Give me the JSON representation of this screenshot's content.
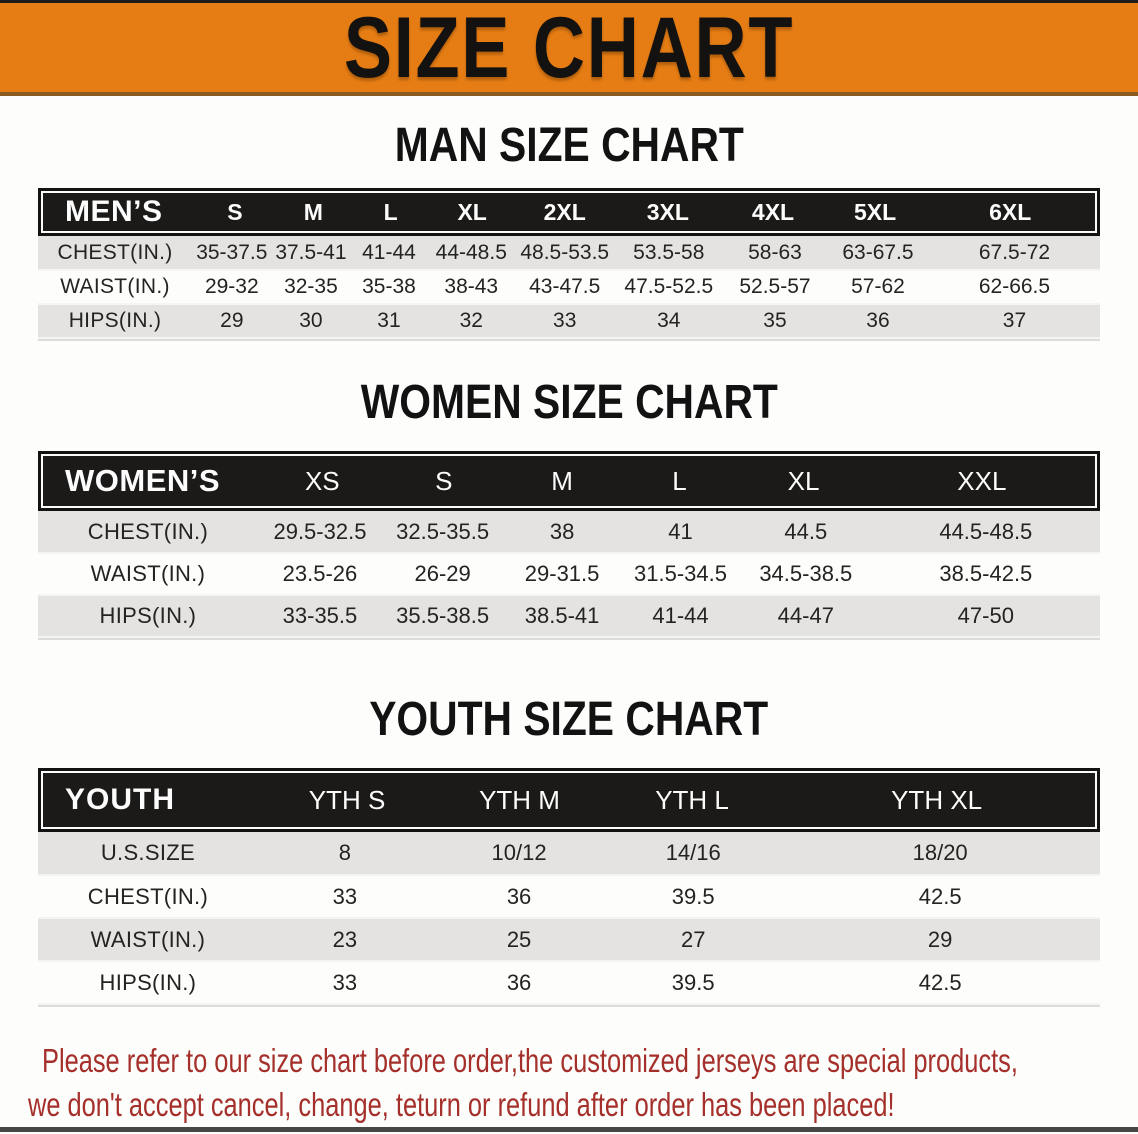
{
  "banner": {
    "title": "SIZE CHART"
  },
  "colors": {
    "banner_orange": "#E67D14",
    "header_band_black": "#1B1A19",
    "row_gray": "#E4E3E1",
    "disclaimer_red": "#A5302B"
  },
  "sections": [
    {
      "heading": "MAN SIZE CHART",
      "table": {
        "key": "men",
        "header_label": "MEN’S",
        "sizes": [
          "S",
          "M",
          "L",
          "XL",
          "2XL",
          "3XL",
          "4XL",
          "5XL",
          "6XL"
        ],
        "rows": [
          {
            "label": "CHEST(IN.)",
            "values": [
              "35-37.5",
              "37.5-41",
              "41-44",
              "44-48.5",
              "48.5-53.5",
              "53.5-58",
              "58-63",
              "63-67.5",
              "67.5-72"
            ]
          },
          {
            "label": "WAIST(IN.)",
            "values": [
              "29-32",
              "32-35",
              "35-38",
              "38-43",
              "43-47.5",
              "47.5-52.5",
              "52.5-57",
              "57-62",
              "62-66.5"
            ]
          },
          {
            "label": "HIPS(IN.)",
            "values": [
              "29",
              "30",
              "31",
              "32",
              "33",
              "34",
              "35",
              "36",
              "37"
            ]
          }
        ]
      }
    },
    {
      "heading": "WOMEN SIZE CHART",
      "table": {
        "key": "women",
        "header_label": "WOMEN’S",
        "sizes": [
          "XS",
          "S",
          "M",
          "L",
          "XL",
          "XXL"
        ],
        "rows": [
          {
            "label": "CHEST(IN.)",
            "values": [
              "29.5-32.5",
              "32.5-35.5",
              "38",
              "41",
              "44.5",
              "44.5-48.5"
            ]
          },
          {
            "label": "WAIST(IN.)",
            "values": [
              "23.5-26",
              "26-29",
              "29-31.5",
              "31.5-34.5",
              "34.5-38.5",
              "38.5-42.5"
            ]
          },
          {
            "label": "HIPS(IN.)",
            "values": [
              "33-35.5",
              "35.5-38.5",
              "38.5-41",
              "41-44",
              "44-47",
              "47-50"
            ]
          }
        ]
      }
    },
    {
      "heading": "YOUTH SIZE CHART",
      "table": {
        "key": "youth",
        "header_label": "YOUTH",
        "sizes": [
          "YTH S",
          "YTH M",
          "YTH L",
          "YTH XL"
        ],
        "rows": [
          {
            "label": "U.S.SIZE",
            "values": [
              "8",
              "10/12",
              "14/16",
              "18/20"
            ]
          },
          {
            "label": "CHEST(IN.)",
            "values": [
              "33",
              "36",
              "39.5",
              "42.5"
            ]
          },
          {
            "label": "WAIST(IN.)",
            "values": [
              "23",
              "25",
              "27",
              "29"
            ]
          },
          {
            "label": "HIPS(IN.)",
            "values": [
              "33",
              "36",
              "39.5",
              "42.5"
            ]
          }
        ]
      }
    }
  ],
  "disclaimer": {
    "line1": "Please refer to our size chart before order,the customized jerseys are special products,",
    "line2": "we don't accept cancel, change, teturn or refund after order has been placed!"
  }
}
